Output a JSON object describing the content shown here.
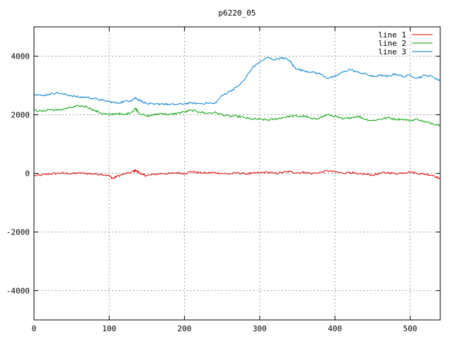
{
  "chart_data": {
    "type": "line",
    "title": "p6220_05",
    "xlabel": "",
    "ylabel": "",
    "xlim": [
      0,
      540
    ],
    "ylim": [
      -5000,
      5000
    ],
    "x_ticks": [
      0,
      100,
      200,
      300,
      400,
      500
    ],
    "y_ticks": [
      -4000,
      -2000,
      0,
      2000,
      4000
    ],
    "grid": true,
    "legend_position": "top-right",
    "series": [
      {
        "name": "line 1",
        "color": "#e00000",
        "points": [
          [
            0,
            -80
          ],
          [
            10,
            -60
          ],
          [
            20,
            -20
          ],
          [
            30,
            0
          ],
          [
            40,
            10
          ],
          [
            50,
            -10
          ],
          [
            60,
            10
          ],
          [
            70,
            0
          ],
          [
            80,
            -20
          ],
          [
            90,
            -30
          ],
          [
            100,
            -80
          ],
          [
            105,
            -180
          ],
          [
            110,
            -100
          ],
          [
            120,
            -20
          ],
          [
            130,
            40
          ],
          [
            135,
            110
          ],
          [
            140,
            20
          ],
          [
            145,
            -50
          ],
          [
            150,
            -80
          ],
          [
            160,
            -30
          ],
          [
            170,
            0
          ],
          [
            180,
            -10
          ],
          [
            190,
            20
          ],
          [
            200,
            0
          ],
          [
            210,
            60
          ],
          [
            220,
            20
          ],
          [
            230,
            10
          ],
          [
            240,
            30
          ],
          [
            250,
            0
          ],
          [
            260,
            -20
          ],
          [
            270,
            20
          ],
          [
            280,
            -10
          ],
          [
            290,
            0
          ],
          [
            300,
            20
          ],
          [
            310,
            40
          ],
          [
            320,
            0
          ],
          [
            330,
            30
          ],
          [
            340,
            60
          ],
          [
            350,
            20
          ],
          [
            360,
            40
          ],
          [
            370,
            -10
          ],
          [
            380,
            30
          ],
          [
            390,
            90
          ],
          [
            400,
            50
          ],
          [
            410,
            10
          ],
          [
            420,
            40
          ],
          [
            430,
            -30
          ],
          [
            440,
            -20
          ],
          [
            450,
            -60
          ],
          [
            460,
            0
          ],
          [
            470,
            30
          ],
          [
            480,
            -10
          ],
          [
            490,
            20
          ],
          [
            500,
            50
          ],
          [
            510,
            0
          ],
          [
            520,
            -30
          ],
          [
            530,
            -60
          ],
          [
            540,
            -180
          ]
        ]
      },
      {
        "name": "line 2",
        "color": "#00a000",
        "points": [
          [
            0,
            2150
          ],
          [
            10,
            2120
          ],
          [
            20,
            2180
          ],
          [
            30,
            2150
          ],
          [
            40,
            2200
          ],
          [
            50,
            2250
          ],
          [
            60,
            2300
          ],
          [
            70,
            2280
          ],
          [
            80,
            2150
          ],
          [
            90,
            2050
          ],
          [
            100,
            2000
          ],
          [
            110,
            2050
          ],
          [
            120,
            2000
          ],
          [
            130,
            2100
          ],
          [
            135,
            2220
          ],
          [
            140,
            2050
          ],
          [
            150,
            1950
          ],
          [
            160,
            2000
          ],
          [
            170,
            2050
          ],
          [
            180,
            2000
          ],
          [
            190,
            2050
          ],
          [
            200,
            2100
          ],
          [
            210,
            2150
          ],
          [
            220,
            2100
          ],
          [
            230,
            2050
          ],
          [
            240,
            2080
          ],
          [
            250,
            2000
          ],
          [
            260,
            1950
          ],
          [
            270,
            1950
          ],
          [
            280,
            1900
          ],
          [
            290,
            1850
          ],
          [
            300,
            1850
          ],
          [
            310,
            1820
          ],
          [
            320,
            1850
          ],
          [
            330,
            1900
          ],
          [
            340,
            1950
          ],
          [
            350,
            1950
          ],
          [
            360,
            1950
          ],
          [
            370,
            1850
          ],
          [
            380,
            1900
          ],
          [
            390,
            2000
          ],
          [
            400,
            1950
          ],
          [
            410,
            1850
          ],
          [
            420,
            1900
          ],
          [
            430,
            1950
          ],
          [
            440,
            1850
          ],
          [
            450,
            1800
          ],
          [
            460,
            1850
          ],
          [
            470,
            1900
          ],
          [
            480,
            1850
          ],
          [
            490,
            1850
          ],
          [
            500,
            1800
          ],
          [
            510,
            1850
          ],
          [
            520,
            1750
          ],
          [
            530,
            1700
          ],
          [
            540,
            1650
          ]
        ]
      },
      {
        "name": "line 3",
        "color": "#0080d0",
        "points": [
          [
            0,
            2720
          ],
          [
            10,
            2650
          ],
          [
            20,
            2700
          ],
          [
            30,
            2750
          ],
          [
            40,
            2700
          ],
          [
            50,
            2650
          ],
          [
            60,
            2600
          ],
          [
            70,
            2600
          ],
          [
            80,
            2550
          ],
          [
            90,
            2500
          ],
          [
            100,
            2450
          ],
          [
            110,
            2400
          ],
          [
            120,
            2450
          ],
          [
            130,
            2500
          ],
          [
            135,
            2580
          ],
          [
            140,
            2500
          ],
          [
            150,
            2380
          ],
          [
            160,
            2350
          ],
          [
            170,
            2380
          ],
          [
            180,
            2350
          ],
          [
            190,
            2350
          ],
          [
            200,
            2380
          ],
          [
            210,
            2400
          ],
          [
            220,
            2380
          ],
          [
            230,
            2400
          ],
          [
            240,
            2380
          ],
          [
            250,
            2650
          ],
          [
            260,
            2800
          ],
          [
            270,
            2950
          ],
          [
            280,
            3200
          ],
          [
            290,
            3600
          ],
          [
            300,
            3800
          ],
          [
            310,
            3950
          ],
          [
            320,
            3880
          ],
          [
            330,
            3950
          ],
          [
            340,
            3850
          ],
          [
            345,
            3650
          ],
          [
            350,
            3550
          ],
          [
            360,
            3500
          ],
          [
            370,
            3450
          ],
          [
            380,
            3400
          ],
          [
            390,
            3250
          ],
          [
            400,
            3300
          ],
          [
            410,
            3450
          ],
          [
            420,
            3550
          ],
          [
            430,
            3450
          ],
          [
            440,
            3400
          ],
          [
            450,
            3300
          ],
          [
            460,
            3350
          ],
          [
            470,
            3300
          ],
          [
            480,
            3400
          ],
          [
            490,
            3300
          ],
          [
            500,
            3350
          ],
          [
            510,
            3250
          ],
          [
            520,
            3350
          ],
          [
            530,
            3300
          ],
          [
            540,
            3150
          ]
        ]
      }
    ]
  }
}
